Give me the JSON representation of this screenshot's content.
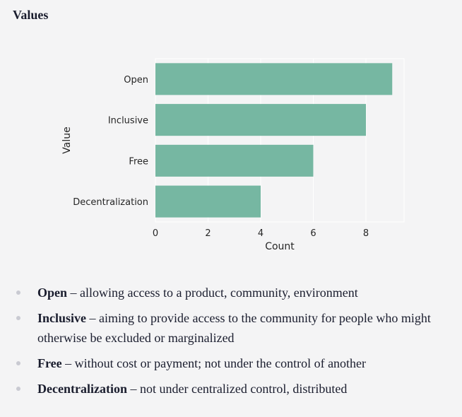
{
  "section": {
    "title": "Values"
  },
  "chart_data": {
    "type": "bar",
    "orientation": "horizontal",
    "categories": [
      "Open",
      "Inclusive",
      "Free",
      "Decentralization"
    ],
    "values": [
      9,
      8,
      6,
      4
    ],
    "xlabel": "Count",
    "ylabel": "Value",
    "xlim": [
      0,
      9.45
    ],
    "xticks": [
      0,
      2,
      4,
      6,
      8
    ],
    "grid": true,
    "bar_color": "#76b7a2"
  },
  "definitions": [
    {
      "term": "Open",
      "separator": " – ",
      "text": "allowing access to a product, community, environment"
    },
    {
      "term": "Inclusive",
      "separator": " – ",
      "text": "aiming to provide access to the community for people who might otherwise be excluded or marginalized"
    },
    {
      "term": "Free",
      "separator": " – ",
      "text": "without cost or payment; not under the control of another"
    },
    {
      "term": "Decentralization",
      "separator": " – ",
      "text": "not under centralized control, distributed"
    }
  ]
}
